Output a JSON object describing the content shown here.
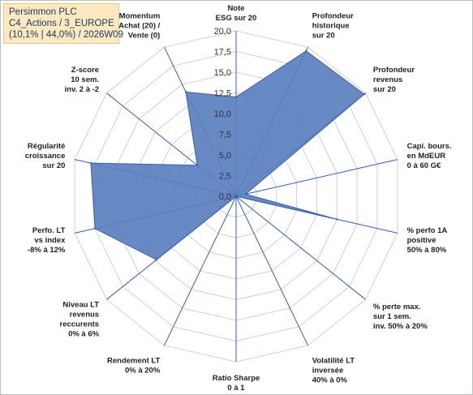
{
  "title_box": {
    "line1": "Persimmon PLC",
    "line2": "C4_Actions / 3_EUROPE",
    "line3": "(10,1% | 44,0%) / 2026W09"
  },
  "colors": {
    "fill": "#5a7fbf",
    "stroke": "#3d5fa3",
    "axis": "#2e5fb8",
    "grid": "#d0d0d0",
    "title_bg": "#fde9bf"
  },
  "chart_data": {
    "type": "radar",
    "rmin": 0,
    "rmax": 20,
    "tick_step": 2.5,
    "tick_labels": [
      "0,0",
      "2,5",
      "5,0",
      "7,5",
      "10,0",
      "12,5",
      "15,0",
      "17,5",
      "20,0"
    ],
    "axes": [
      {
        "label": [
          "Note",
          "ESG sur 20"
        ],
        "value": 12
      },
      {
        "label": [
          "Profondeur",
          "historique",
          "sur 20"
        ],
        "value": 19.5
      },
      {
        "label": [
          "Profondeur",
          "revenus",
          "sur 20"
        ],
        "value": 19.8
      },
      {
        "label": [
          "Capi. bours.",
          "en MdEUR",
          "0 à 60 G€"
        ],
        "value": 1.2
      },
      {
        "label": [
          "% perfo 1A",
          "positive",
          "50% à 80%"
        ],
        "value": 12.5
      },
      {
        "label": [
          "% perte max.",
          "sur 1 sem.",
          "inv. 50% à 20%"
        ],
        "value": 0
      },
      {
        "label": [
          "Volatilité LT",
          "inversée",
          "40% à 0%"
        ],
        "value": 0
      },
      {
        "label": [
          "Ratio Sharpe",
          "0 à 1"
        ],
        "value": 0
      },
      {
        "label": [
          "Rendement LT",
          "0% à 20%"
        ],
        "value": 0
      },
      {
        "label": [
          "Niveau LT",
          "revenus",
          "reccurents",
          "0% à 6%"
        ],
        "value": 12.3
      },
      {
        "label": [
          "Perfo. LT",
          "vs index",
          "-8% à 12%"
        ],
        "value": 17.5
      },
      {
        "label": [
          "Régularité",
          "croissance",
          "sur 20"
        ],
        "value": 18
      },
      {
        "label": [
          "Z-score",
          "10 sem.",
          "inv. 2 à -2"
        ],
        "value": 6
      },
      {
        "label": [
          "Momentum",
          "Achat (20) /",
          "Vente (0)"
        ],
        "value": 14
      }
    ]
  }
}
